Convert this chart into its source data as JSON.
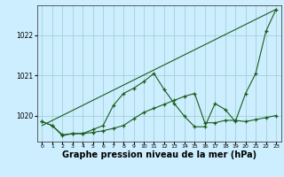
{
  "background_color": "#cceeff",
  "grid_color": "#99cccc",
  "line_color": "#1a5c1a",
  "xlabel": "Graphe pression niveau de la mer (hPa)",
  "xlabel_fontsize": 7,
  "xlim": [
    -0.5,
    23.5
  ],
  "ylim": [
    1019.35,
    1022.75
  ],
  "yticks": [
    1020,
    1021,
    1022
  ],
  "xticks": [
    0,
    1,
    2,
    3,
    4,
    5,
    6,
    7,
    8,
    9,
    10,
    11,
    12,
    13,
    14,
    15,
    16,
    17,
    18,
    19,
    20,
    21,
    22,
    23
  ],
  "series1_x": [
    0,
    23
  ],
  "series1_y": [
    1019.75,
    1022.65
  ],
  "series2_x": [
    0,
    1,
    2,
    3,
    4,
    5,
    6,
    7,
    8,
    9,
    10,
    11,
    12,
    13,
    14,
    15,
    16,
    17,
    18,
    19,
    20,
    21,
    22,
    23
  ],
  "series2_y": [
    1019.85,
    1019.75,
    1019.5,
    1019.55,
    1019.55,
    1019.65,
    1019.75,
    1020.25,
    1020.55,
    1020.68,
    1020.85,
    1021.05,
    1020.65,
    1020.3,
    1019.98,
    1019.72,
    1019.72,
    1020.3,
    1020.15,
    1019.85,
    1020.55,
    1021.05,
    1022.1,
    1022.65
  ],
  "series3_x": [
    0,
    1,
    2,
    3,
    4,
    5,
    6,
    7,
    8,
    9,
    10,
    11,
    12,
    13,
    14,
    15,
    16,
    17,
    18,
    19,
    20,
    21,
    22,
    23
  ],
  "series3_y": [
    1019.85,
    1019.75,
    1019.52,
    1019.55,
    1019.55,
    1019.58,
    1019.62,
    1019.68,
    1019.75,
    1019.92,
    1020.08,
    1020.18,
    1020.28,
    1020.38,
    1020.48,
    1020.55,
    1019.82,
    1019.82,
    1019.88,
    1019.88,
    1019.85,
    1019.9,
    1019.95,
    1020.0
  ]
}
